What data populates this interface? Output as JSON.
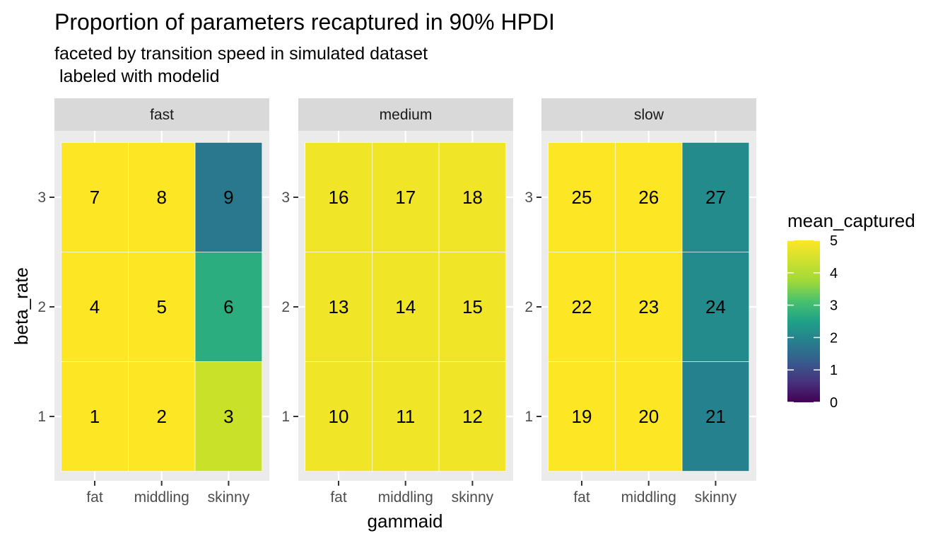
{
  "chart_data": {
    "type": "heatmap",
    "title": "Proportion of parameters recaptured in 90% HPDI",
    "subtitle_lines": [
      "faceted by transition speed in simulated dataset",
      " labeled with modelid"
    ],
    "xlabel": "gammaid",
    "ylabel": "beta_rate",
    "x_categories": [
      "fat",
      "middling",
      "skinny"
    ],
    "y_categories": [
      "1",
      "2",
      "3"
    ],
    "facets": [
      {
        "name": "fast",
        "rows": [
          {
            "y": "3",
            "cells": [
              {
                "x": "fat",
                "value": 5.0,
                "label": "7"
              },
              {
                "x": "middling",
                "value": 5.0,
                "label": "8"
              },
              {
                "x": "skinny",
                "value": 2.0,
                "label": "9"
              }
            ]
          },
          {
            "y": "2",
            "cells": [
              {
                "x": "fat",
                "value": 5.0,
                "label": "4"
              },
              {
                "x": "middling",
                "value": 5.0,
                "label": "5"
              },
              {
                "x": "skinny",
                "value": 3.1,
                "label": "6"
              }
            ]
          },
          {
            "y": "1",
            "cells": [
              {
                "x": "fat",
                "value": 5.0,
                "label": "1"
              },
              {
                "x": "middling",
                "value": 5.0,
                "label": "2"
              },
              {
                "x": "skinny",
                "value": 4.6,
                "label": "3"
              }
            ]
          }
        ]
      },
      {
        "name": "medium",
        "rows": [
          {
            "y": "3",
            "cells": [
              {
                "x": "fat",
                "value": 4.9,
                "label": "16"
              },
              {
                "x": "middling",
                "value": 4.9,
                "label": "17"
              },
              {
                "x": "skinny",
                "value": 4.9,
                "label": "18"
              }
            ]
          },
          {
            "y": "2",
            "cells": [
              {
                "x": "fat",
                "value": 4.9,
                "label": "13"
              },
              {
                "x": "middling",
                "value": 4.9,
                "label": "14"
              },
              {
                "x": "skinny",
                "value": 4.9,
                "label": "15"
              }
            ]
          },
          {
            "y": "1",
            "cells": [
              {
                "x": "fat",
                "value": 4.9,
                "label": "10"
              },
              {
                "x": "middling",
                "value": 4.9,
                "label": "11"
              },
              {
                "x": "skinny",
                "value": 4.9,
                "label": "12"
              }
            ]
          }
        ]
      },
      {
        "name": "slow",
        "rows": [
          {
            "y": "3",
            "cells": [
              {
                "x": "fat",
                "value": 5.0,
                "label": "25"
              },
              {
                "x": "middling",
                "value": 5.0,
                "label": "26"
              },
              {
                "x": "skinny",
                "value": 2.4,
                "label": "27"
              }
            ]
          },
          {
            "y": "2",
            "cells": [
              {
                "x": "fat",
                "value": 5.0,
                "label": "22"
              },
              {
                "x": "middling",
                "value": 5.0,
                "label": "23"
              },
              {
                "x": "skinny",
                "value": 2.4,
                "label": "24"
              }
            ]
          },
          {
            "y": "1",
            "cells": [
              {
                "x": "fat",
                "value": 5.0,
                "label": "19"
              },
              {
                "x": "middling",
                "value": 5.0,
                "label": "20"
              },
              {
                "x": "skinny",
                "value": 2.2,
                "label": "21"
              }
            ]
          }
        ]
      }
    ],
    "legend": {
      "title": "mean_captured",
      "position": "right",
      "range": [
        0,
        5
      ],
      "ticks": [
        0,
        1,
        2,
        3,
        4,
        5
      ]
    },
    "colorscale": "viridis",
    "panel_background": "#ebebeb",
    "strip_background": "#d9d9d9",
    "grid": true
  }
}
